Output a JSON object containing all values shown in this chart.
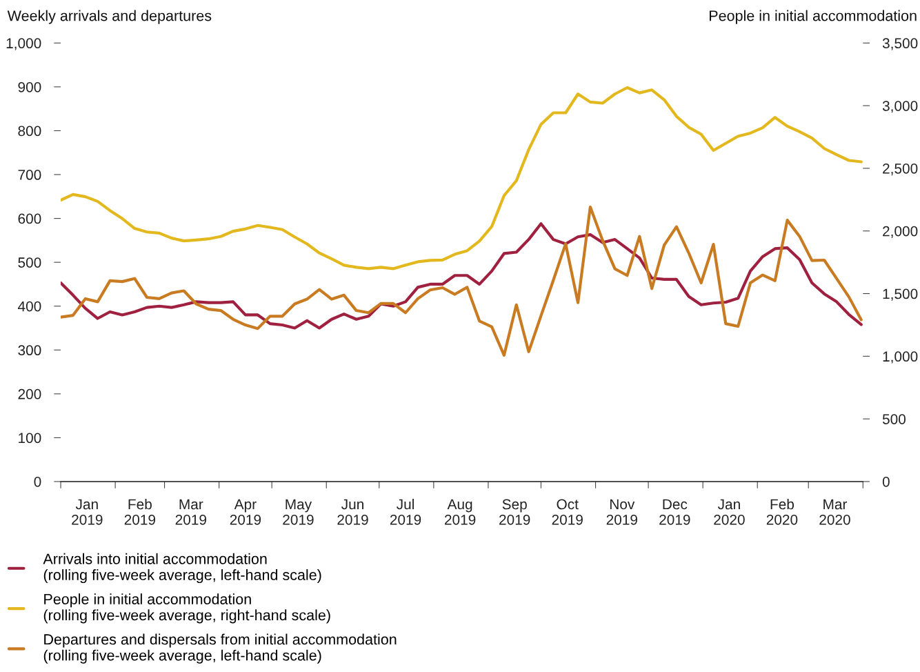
{
  "chart_data": {
    "type": "line",
    "ylabel": "Weekly arrivals and departures",
    "y2label": "People in initial accommodation",
    "x": [
      "2019-01-01",
      "2019-01-08",
      "2019-01-15",
      "2019-01-22",
      "2019-01-29",
      "2019-02-05",
      "2019-02-12",
      "2019-02-19",
      "2019-02-26",
      "2019-03-05",
      "2019-03-12",
      "2019-03-19",
      "2019-03-26",
      "2019-04-02",
      "2019-04-09",
      "2019-04-16",
      "2019-04-23",
      "2019-04-30",
      "2019-05-07",
      "2019-05-14",
      "2019-05-21",
      "2019-05-28",
      "2019-06-04",
      "2019-06-11",
      "2019-06-18",
      "2019-06-25",
      "2019-07-02",
      "2019-07-09",
      "2019-07-16",
      "2019-07-23",
      "2019-07-30",
      "2019-08-06",
      "2019-08-13",
      "2019-08-20",
      "2019-08-27",
      "2019-09-03",
      "2019-09-10",
      "2019-09-17",
      "2019-09-24",
      "2019-10-01",
      "2019-10-08",
      "2019-10-15",
      "2019-10-22",
      "2019-10-29",
      "2019-11-05",
      "2019-11-12",
      "2019-11-19",
      "2019-11-26",
      "2019-12-03",
      "2019-12-10",
      "2019-12-17",
      "2019-12-24",
      "2019-12-31",
      "2020-01-07",
      "2020-01-14",
      "2020-01-21",
      "2020-01-28",
      "2020-02-04",
      "2020-02-11",
      "2020-02-18",
      "2020-02-25",
      "2020-03-03",
      "2020-03-10",
      "2020-03-17",
      "2020-03-24",
      "2020-03-31"
    ],
    "series": [
      {
        "name": "Arrivals into initial accommodation\n(rolling five-week average, left-hand scale)",
        "color": "#a0203f",
        "values": [
          453,
          425,
          395,
          372,
          387,
          380,
          387,
          397,
          400,
          397,
          403,
          410,
          408,
          408,
          410,
          380,
          380,
          360,
          357,
          350,
          367,
          350,
          370,
          382,
          370,
          377,
          405,
          400,
          410,
          443,
          450,
          450,
          470,
          470,
          450,
          480,
          520,
          523,
          552,
          588,
          552,
          542,
          558,
          563,
          545,
          552,
          531,
          510,
          464,
          461,
          461,
          422,
          403,
          407,
          409,
          418,
          480,
          513,
          531,
          533,
          506,
          453,
          428,
          410,
          381,
          358
        ]
      },
      {
        "name": "People in initial accommodation\n(rolling five-week average, right-hand scale)",
        "color": "#e3b81f",
        "axis": "y2",
        "values": [
          2246,
          2291,
          2273,
          2236,
          2163,
          2099,
          2020,
          1992,
          1983,
          1943,
          1921,
          1928,
          1937,
          1956,
          1998,
          2016,
          2044,
          2029,
          2011,
          1952,
          1897,
          1824,
          1778,
          1727,
          1710,
          1699,
          1710,
          1699,
          1728,
          1754,
          1765,
          1768,
          1814,
          1842,
          1919,
          2035,
          2282,
          2401,
          2649,
          2851,
          2943,
          2943,
          3093,
          3029,
          3020,
          3093,
          3144,
          3102,
          3126,
          3047,
          2915,
          2827,
          2772,
          2643,
          2699,
          2756,
          2781,
          2824,
          2906,
          2836,
          2792,
          2741,
          2658,
          2609,
          2563,
          2552
        ]
      },
      {
        "name": "Departures and dispersals from initial accommodation\n(rolling five-week average, left-hand scale)",
        "color": "#c97b22",
        "values": [
          375,
          379,
          417,
          410,
          458,
          456,
          463,
          420,
          417,
          430,
          435,
          405,
          393,
          390,
          370,
          357,
          349,
          377,
          377,
          405,
          416,
          438,
          416,
          425,
          390,
          385,
          406,
          406,
          385,
          417,
          437,
          442,
          427,
          443,
          366,
          353,
          288,
          403,
          296,
          378,
          459,
          542,
          408,
          626,
          550,
          485,
          470,
          559,
          440,
          539,
          581,
          521,
          453,
          541,
          360,
          354,
          453,
          471,
          458,
          596,
          559,
          504,
          505,
          463,
          421,
          369
        ]
      }
    ],
    "xlim": [
      "2019-01-01",
      "2020-04-01"
    ],
    "xticks": [
      {
        "value": "2019-01-01",
        "label": null
      },
      {
        "value": "2019-02-01",
        "label": null
      },
      {
        "value": "2019-03-01",
        "label": null
      },
      {
        "value": "2019-04-01",
        "label": null
      },
      {
        "value": "2019-05-01",
        "label": null
      },
      {
        "value": "2019-06-01",
        "label": null
      },
      {
        "value": "2019-07-01",
        "label": null
      },
      {
        "value": "2019-08-01",
        "label": null
      },
      {
        "value": "2019-09-01",
        "label": null
      },
      {
        "value": "2019-10-01",
        "label": null
      },
      {
        "value": "2019-11-01",
        "label": null
      },
      {
        "value": "2019-12-01",
        "label": null
      },
      {
        "value": "2020-01-01",
        "label": null
      },
      {
        "value": "2020-02-01",
        "label": null
      },
      {
        "value": "2020-03-01",
        "label": null
      },
      {
        "value": "2020-04-01",
        "label": null
      },
      {
        "value": "2019-01-16",
        "label": "Jan\n2019"
      },
      {
        "value": "2019-02-15",
        "label": "Feb\n2019"
      },
      {
        "value": "2019-03-16",
        "label": "Mar\n2019"
      },
      {
        "value": "2019-04-16",
        "label": "Apr\n2019"
      },
      {
        "value": "2019-05-16",
        "label": "May\n2019"
      },
      {
        "value": "2019-06-16",
        "label": "Jun\n2019"
      },
      {
        "value": "2019-07-16",
        "label": "Jul\n2019"
      },
      {
        "value": "2019-08-16",
        "label": "Aug\n2019"
      },
      {
        "value": "2019-09-16",
        "label": "Sep\n2019"
      },
      {
        "value": "2019-10-16",
        "label": "Oct\n2019"
      },
      {
        "value": "2019-11-16",
        "label": "Nov\n2019"
      },
      {
        "value": "2019-12-16",
        "label": "Dec\n2019"
      },
      {
        "value": "2020-01-16",
        "label": "Jan\n2020"
      },
      {
        "value": "2020-02-15",
        "label": "Feb\n2020"
      },
      {
        "value": "2020-03-16",
        "label": "Mar\n2020"
      }
    ],
    "ylim": [
      0,
      1000
    ],
    "yticks": [
      0,
      100,
      200,
      300,
      400,
      500,
      600,
      700,
      800,
      900,
      {
        "value": 1000,
        "label": "1,000"
      }
    ],
    "y2lim": [
      0,
      3500
    ],
    "y2ticks": [
      0,
      500,
      {
        "value": 1000,
        "label": "1,000"
      },
      {
        "value": 1500,
        "label": "1,500"
      },
      {
        "value": 2000,
        "label": "2,000"
      },
      {
        "value": 2500,
        "label": "2,500"
      },
      {
        "value": 3000,
        "label": "3,000"
      },
      {
        "value": 3500,
        "label": "3,500"
      }
    ],
    "legend": "bottom left",
    "grid": false,
    "line_style": "solid"
  }
}
